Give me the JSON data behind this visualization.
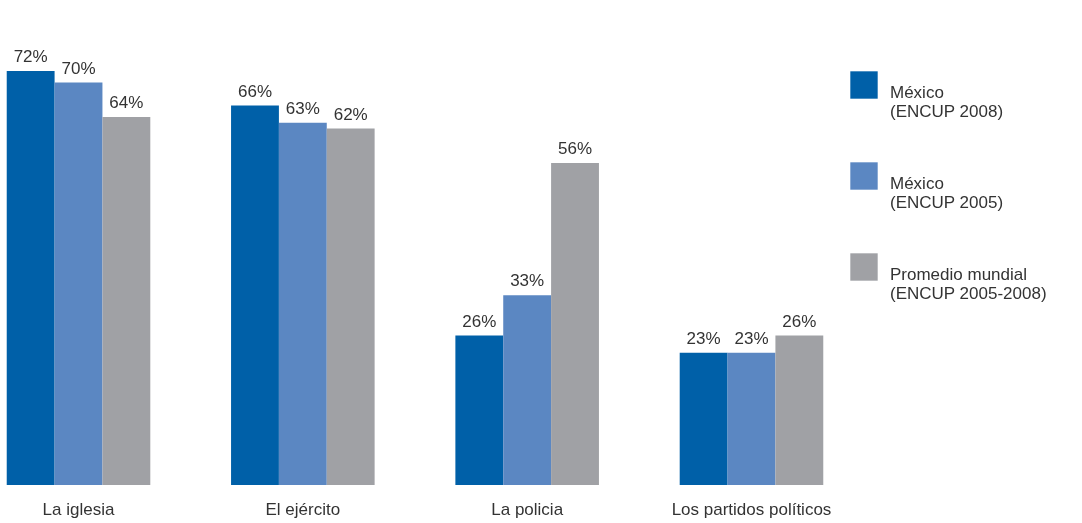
{
  "chart_data": {
    "type": "bar",
    "categories": [
      "La iglesia",
      "El ejército",
      "La policia",
      "Los partidos políticos"
    ],
    "series": [
      {
        "name": "México (ENCUP 2008)",
        "color": "#0060a8",
        "values": [
          72,
          66,
          26,
          23
        ],
        "value_labels": [
          "72%",
          "66%",
          "26%",
          "23%"
        ]
      },
      {
        "name": "México (ENCUP 2005)",
        "color": "#5b87c2",
        "values": [
          70,
          63,
          33,
          23
        ],
        "value_labels": [
          "70%",
          "63%",
          "33%",
          "23%"
        ]
      },
      {
        "name": "Promedio mundial (ENCUP 2005-2008)",
        "color": "#a0a1a5",
        "values": [
          64,
          62,
          56,
          26
        ],
        "value_labels": [
          "64%",
          "62%",
          "56%",
          "26%"
        ]
      }
    ],
    "legend": "right"
  }
}
